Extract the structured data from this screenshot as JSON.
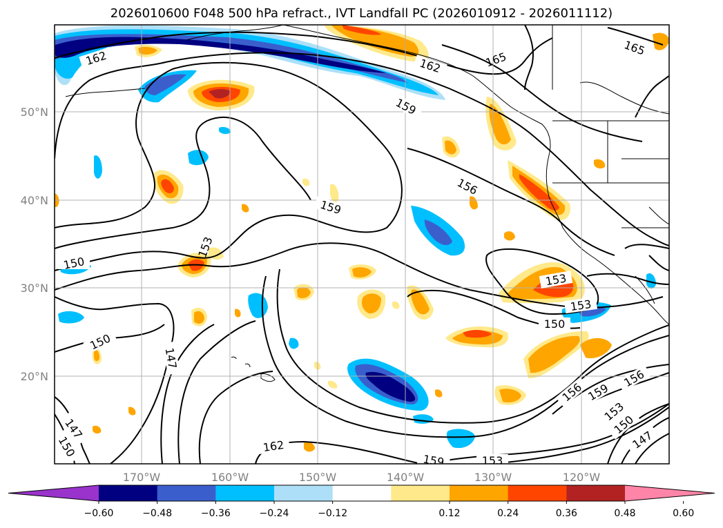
{
  "title": "2026010600 F048 500 hPa refract., IVT Landfall PC (2026010912 - 2026011112)",
  "map": {
    "latitude_labels": [
      "50°N",
      "40°N",
      "30°N",
      "20°N"
    ],
    "longitude_labels": [
      "170°W",
      "160°W",
      "150°W",
      "140°W",
      "130°W",
      "120°W"
    ],
    "contour_labels": [
      "162",
      "165",
      "162",
      "159",
      "165",
      "156",
      "159",
      "153",
      "150",
      "153",
      "153",
      "150",
      "150",
      "147",
      "147",
      "150",
      "162",
      "156",
      "159",
      "156",
      "153",
      "150",
      "147",
      "153",
      "159"
    ]
  },
  "colorbar": {
    "ticks": [
      "−0.60",
      "−0.48",
      "−0.36",
      "−0.24",
      "−0.12",
      "0.12",
      "0.24",
      "0.36",
      "0.48",
      "0.60"
    ],
    "colors": [
      "#9933cc",
      "#000080",
      "#3a5fcd",
      "#00bfff",
      "#ade0f8",
      "#ffffff",
      "#ffe98a",
      "#ffa500",
      "#ff4500",
      "#b22222",
      "#ff85a8"
    ]
  },
  "colors": {
    "neg_extreme": "#000080",
    "neg_strong": "#3a5fcd",
    "neg_mid": "#00bfff",
    "neg_light": "#ade0f8",
    "pos_light": "#ffe98a",
    "pos_mid": "#ffa500",
    "pos_strong": "#ff4500",
    "pos_extreme": "#b22222"
  }
}
